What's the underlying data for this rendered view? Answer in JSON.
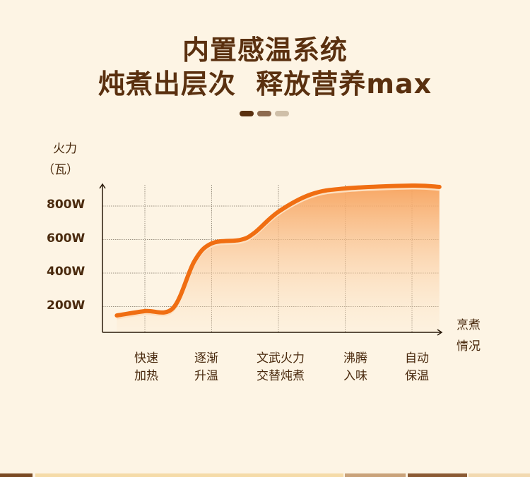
{
  "header": {
    "title_line1": "内置感温系统",
    "title_line2": "炖煮出层次  释放营养max",
    "dots": [
      "#5a300f",
      "#8d6a4e",
      "#cfbfa8"
    ]
  },
  "chart_data": {
    "type": "area",
    "ylabel_line1": "火力",
    "ylabel_line2": "（瓦）",
    "xlabel_line1": "烹煮",
    "xlabel_line2": "情况",
    "yticks": [
      {
        "value": 200,
        "label": "200W"
      },
      {
        "value": 400,
        "label": "400W"
      },
      {
        "value": 600,
        "label": "600W"
      },
      {
        "value": 800,
        "label": "800W"
      }
    ],
    "categories": [
      {
        "line1": "快速",
        "line2": "加热"
      },
      {
        "line1": "逐渐",
        "line2": "升温"
      },
      {
        "line1": "文武火力",
        "line2": "交替炖煮"
      },
      {
        "line1": "沸腾",
        "line2": "入味"
      },
      {
        "line1": "自动",
        "line2": "保温"
      }
    ],
    "grid": true,
    "curve_points": [
      {
        "x": 0.58,
        "y": 147
      },
      {
        "x": 1.0,
        "y": 173
      },
      {
        "x": 1.42,
        "y": 190
      },
      {
        "x": 1.74,
        "y": 470
      },
      {
        "x": 2.0,
        "y": 577
      },
      {
        "x": 2.43,
        "y": 598
      },
      {
        "x": 2.64,
        "y": 640
      },
      {
        "x": 3.0,
        "y": 766
      },
      {
        "x": 3.49,
        "y": 870
      },
      {
        "x": 4.0,
        "y": 905
      },
      {
        "x": 5.0,
        "y": 922
      },
      {
        "x": 5.41,
        "y": 914
      }
    ],
    "line_color": "#f06e12",
    "fill_color": "#f7a35e"
  }
}
